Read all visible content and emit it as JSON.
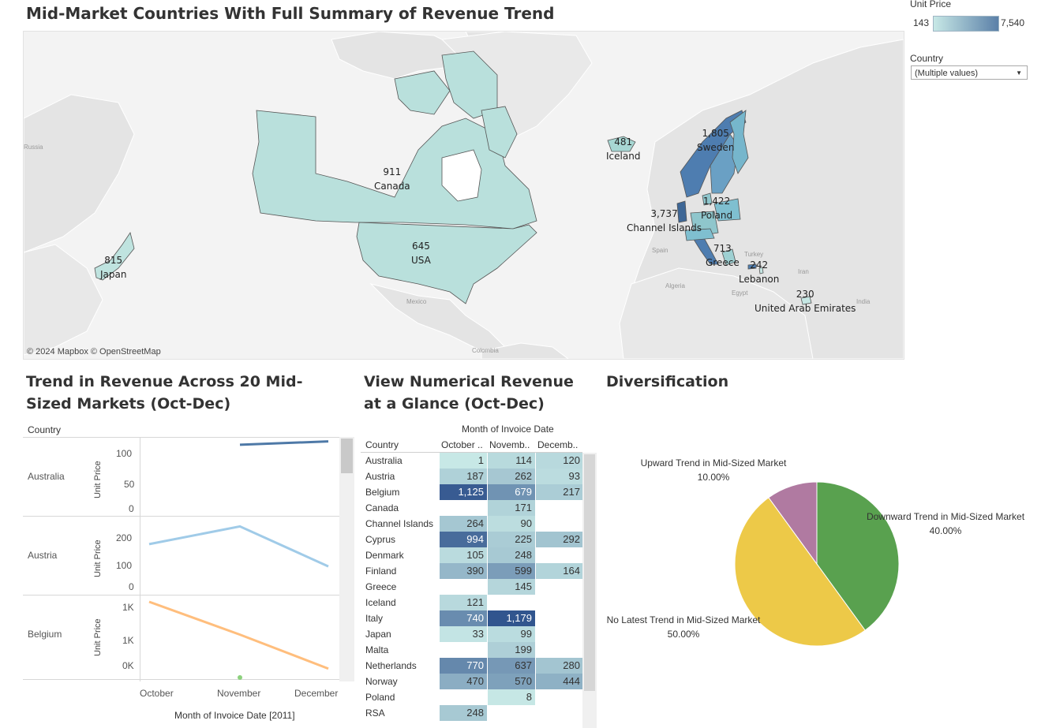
{
  "dashboard_title": "Mid-Market Countries With Full Summary of Revenue Trend",
  "legend": {
    "title": "Unit Price",
    "min": "143",
    "max": "7,540",
    "color_low": "#c7e8e6",
    "color_high": "#5b80a8"
  },
  "filter": {
    "label": "Country",
    "value": "(Multiple values)"
  },
  "map": {
    "attribution": "© 2024 Mapbox  © OpenStreetMap",
    "countries": [
      {
        "name": "Japan",
        "value": "815"
      },
      {
        "name": "Canada",
        "value": "911"
      },
      {
        "name": "USA",
        "value": "645"
      },
      {
        "name": "Iceland",
        "value": "481"
      },
      {
        "name": "Sweden",
        "value": "1,805"
      },
      {
        "name": "Poland",
        "value": "1,422"
      },
      {
        "name": "Channel Islands",
        "value": "3,737"
      },
      {
        "name": "Greece",
        "value": "713"
      },
      {
        "name": "Lebanon",
        "value": "242"
      },
      {
        "name": "United Arab Emirates",
        "value": "230"
      }
    ],
    "base_labels": [
      "Russia",
      "Mexico",
      "Colombia",
      "Spain",
      "Turkey",
      "Iran",
      "Algeria",
      "Egypt",
      "India"
    ]
  },
  "trend": {
    "title": "Trend in Revenue Across 20 Mid-Sized Markets (Oct-Dec)",
    "country_header": "Country",
    "y_label": "Unit Price",
    "x_title": "Month of Invoice Date [2011]",
    "x_ticks": [
      "October",
      "November",
      "December"
    ],
    "panes": [
      {
        "country": "Australia",
        "ticks": [
          "100",
          "50",
          "0"
        ],
        "color": "#4e79a7"
      },
      {
        "country": "Austria",
        "ticks": [
          "200",
          "100",
          "0"
        ],
        "color": "#a0cbe8"
      },
      {
        "country": "Belgium",
        "ticks": [
          "1K",
          "1K",
          "0K"
        ],
        "color": "#ffbe7d"
      }
    ]
  },
  "chart_data": [
    {
      "type": "line",
      "title": "Trend in Revenue Across 20 Mid-Sized Markets (Oct-Dec)",
      "xlabel": "Month of Invoice Date [2011]",
      "ylabel": "Unit Price",
      "categories": [
        "October",
        "November",
        "December"
      ],
      "series": [
        {
          "name": "Australia",
          "values": [
            1,
            114,
            120
          ]
        },
        {
          "name": "Austria",
          "values": [
            187,
            262,
            93
          ]
        },
        {
          "name": "Belgium",
          "values": [
            1125,
            679,
            217
          ]
        }
      ]
    },
    {
      "type": "pie",
      "title": "Diversification",
      "series": [
        {
          "name": "Downward Trend in Mid-Sized Market",
          "value": 40.0,
          "color": "#59a14f"
        },
        {
          "name": "No Latest Trend in Mid-Sized Market",
          "value": 50.0,
          "color": "#edc948"
        },
        {
          "name": "Upward Trend in Mid-Sized Market",
          "value": 10.0,
          "color": "#b07aa1"
        }
      ]
    }
  ],
  "table": {
    "title": "View Numerical Revenue at a Glance (Oct-Dec)",
    "column_group": "Month of Invoice Date",
    "country_header": "Country",
    "columns": [
      "October ..",
      "Novemb..",
      "Decemb.."
    ],
    "rows": [
      {
        "country": "Australia",
        "values": [
          "1",
          "114",
          "120"
        ],
        "nums": [
          1,
          114,
          120
        ]
      },
      {
        "country": "Austria",
        "values": [
          "187",
          "262",
          "93"
        ],
        "nums": [
          187,
          262,
          93
        ]
      },
      {
        "country": "Belgium",
        "values": [
          "1,125",
          "679",
          "217"
        ],
        "nums": [
          1125,
          679,
          217
        ]
      },
      {
        "country": "Canada",
        "values": [
          "",
          "171",
          ""
        ],
        "nums": [
          null,
          171,
          null
        ]
      },
      {
        "country": "Channel Islands",
        "values": [
          "264",
          "90",
          ""
        ],
        "nums": [
          264,
          90,
          null
        ]
      },
      {
        "country": "Cyprus",
        "values": [
          "994",
          "225",
          "292"
        ],
        "nums": [
          994,
          225,
          292
        ]
      },
      {
        "country": "Denmark",
        "values": [
          "105",
          "248",
          ""
        ],
        "nums": [
          105,
          248,
          null
        ]
      },
      {
        "country": "Finland",
        "values": [
          "390",
          "599",
          "164"
        ],
        "nums": [
          390,
          599,
          164
        ]
      },
      {
        "country": "Greece",
        "values": [
          "",
          "145",
          ""
        ],
        "nums": [
          null,
          145,
          null
        ]
      },
      {
        "country": "Iceland",
        "values": [
          "121",
          "",
          ""
        ],
        "nums": [
          121,
          null,
          null
        ]
      },
      {
        "country": "Italy",
        "values": [
          "740",
          "1,179",
          ""
        ],
        "nums": [
          740,
          1179,
          null
        ]
      },
      {
        "country": "Japan",
        "values": [
          "33",
          "99",
          ""
        ],
        "nums": [
          33,
          99,
          null
        ]
      },
      {
        "country": "Malta",
        "values": [
          "",
          "199",
          ""
        ],
        "nums": [
          null,
          199,
          null
        ]
      },
      {
        "country": "Netherlands",
        "values": [
          "770",
          "637",
          "280"
        ],
        "nums": [
          770,
          637,
          280
        ]
      },
      {
        "country": "Norway",
        "values": [
          "470",
          "570",
          "444"
        ],
        "nums": [
          470,
          570,
          444
        ]
      },
      {
        "country": "Poland",
        "values": [
          "",
          "8",
          ""
        ],
        "nums": [
          null,
          8,
          null
        ]
      },
      {
        "country": "RSA",
        "values": [
          "248",
          "",
          ""
        ],
        "nums": [
          248,
          null,
          null
        ]
      }
    ]
  },
  "pie": {
    "title": "Diversification",
    "labels": [
      {
        "name": "Upward Trend in Mid-Sized Market",
        "pct": "10.00%"
      },
      {
        "name": "Downward Trend in Mid-Sized Market",
        "pct": "40.00%"
      },
      {
        "name": "No Latest Trend in Mid-Sized Market",
        "pct": "50.00%"
      }
    ]
  }
}
